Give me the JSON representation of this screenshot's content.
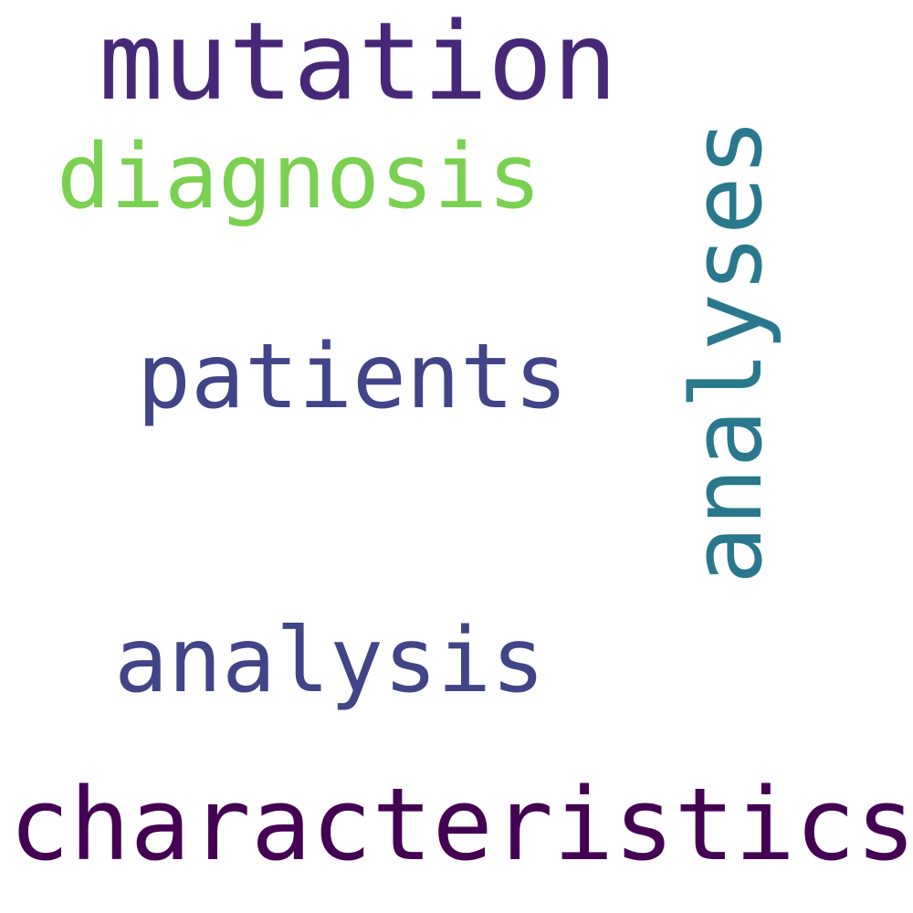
{
  "words": {
    "mutation": "mutation",
    "diagnosis": "diagnosis",
    "patients": "patients",
    "analyses": "analyses",
    "analysis": "analysis",
    "characteristics": "characteristics"
  },
  "colors": {
    "mutation": "#472878",
    "diagnosis": "#7ad151",
    "patients": "#414487",
    "analyses": "#2a788e",
    "analysis": "#414487",
    "characteristics": "#440154",
    "background": "#ffffff"
  }
}
